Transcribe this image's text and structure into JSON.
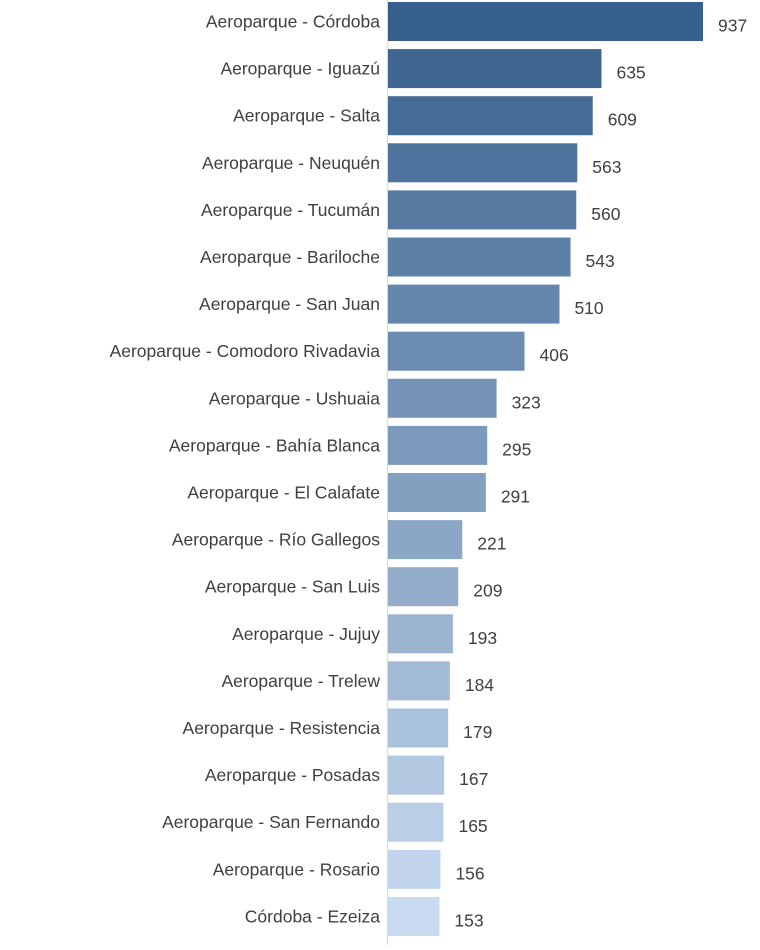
{
  "chart_data": {
    "type": "bar",
    "orientation": "horizontal",
    "categories": [
      "Aeroparque - Córdoba",
      "Aeroparque - Iguazú",
      "Aeroparque - Salta",
      "Aeroparque - Neuquén",
      "Aeroparque - Tucumán",
      "Aeroparque - Bariloche",
      "Aeroparque - San Juan",
      "Aeroparque - Comodoro Rivadavia",
      "Aeroparque - Ushuaia",
      "Aeroparque - Bahía Blanca",
      "Aeroparque - El Calafate",
      "Aeroparque - Río Gallegos",
      "Aeroparque - San Luis",
      "Aeroparque - Jujuy",
      "Aeroparque - Trelew",
      "Aeroparque - Resistencia",
      "Aeroparque - Posadas",
      "Aeroparque - San Fernando",
      "Aeroparque - Rosario",
      "Córdoba - Ezeiza"
    ],
    "values": [
      937,
      635,
      609,
      563,
      560,
      543,
      510,
      406,
      323,
      295,
      291,
      221,
      209,
      193,
      184,
      179,
      167,
      165,
      156,
      153
    ],
    "data_labels": [
      "937",
      "635",
      "609",
      "563",
      "560",
      "543",
      "510",
      "406",
      "323",
      "295",
      "291",
      "221",
      "209",
      "193",
      "184",
      "179",
      "167",
      "165",
      "156",
      "153"
    ],
    "title": "",
    "xlabel": "",
    "ylabel": "",
    "xlim": [
      0,
      937
    ],
    "grid": false,
    "legend": "none",
    "color_start": "#365f8c",
    "color_end": "#c9dbf0",
    "label_color": "#404040",
    "axis_color": "#d9d9d9"
  }
}
